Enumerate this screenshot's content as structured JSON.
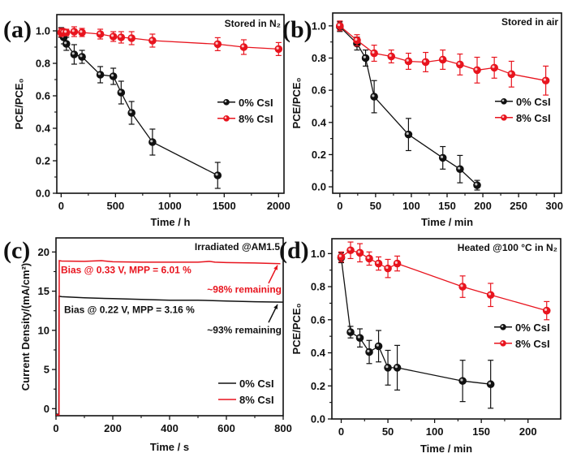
{
  "colors": {
    "series_0": "#111111",
    "series_8": "#e8141e",
    "axis": "#111111"
  },
  "chart_data": [
    {
      "id": "a",
      "panel_label": "(a)",
      "type": "line",
      "title": "Stored in N₂",
      "xlabel": "Time / h",
      "ylabel": "PCE/PCE₀",
      "xlim": [
        -40,
        2050
      ],
      "ylim": [
        0,
        1.1
      ],
      "xticks": [
        0,
        500,
        1000,
        1500,
        2000
      ],
      "yticks": [
        0.0,
        0.2,
        0.4,
        0.6,
        0.8,
        1.0
      ],
      "ytick_labels": [
        "0.0",
        "0.2",
        "0.4",
        "0.6",
        "0.8",
        "1.0"
      ],
      "legend": "center-right",
      "series": [
        {
          "name": "0% CsI",
          "color": "#111111",
          "x": [
            0,
            24,
            48,
            120,
            192,
            360,
            480,
            552,
            648,
            840,
            1440
          ],
          "y": [
            0.99,
            0.96,
            0.92,
            0.855,
            0.84,
            0.73,
            0.72,
            0.62,
            0.495,
            0.315,
            0.11
          ],
          "err": [
            0.03,
            0.04,
            0.04,
            0.06,
            0.04,
            0.05,
            0.05,
            0.07,
            0.07,
            0.08,
            0.08
          ]
        },
        {
          "name": "8% CsI",
          "color": "#e8141e",
          "x": [
            0,
            12,
            24,
            48,
            120,
            192,
            360,
            480,
            552,
            648,
            840,
            1440,
            1680,
            2000
          ],
          "y": [
            0.99,
            0.995,
            0.99,
            0.99,
            0.995,
            0.99,
            0.98,
            0.965,
            0.96,
            0.955,
            0.94,
            0.918,
            0.9,
            0.888
          ],
          "err": [
            0.025,
            0.02,
            0.02,
            0.02,
            0.03,
            0.025,
            0.03,
            0.03,
            0.035,
            0.04,
            0.04,
            0.04,
            0.045,
            0.04
          ]
        }
      ]
    },
    {
      "id": "b",
      "panel_label": "(b)",
      "type": "line",
      "title": "Stored in air",
      "xlabel": "Time / min",
      "ylabel": "PCE/PCE₀",
      "xlim": [
        -10,
        310
      ],
      "ylim": [
        -0.04,
        1.08
      ],
      "xticks": [
        0,
        50,
        100,
        150,
        200,
        250,
        300
      ],
      "yticks": [
        0.0,
        0.2,
        0.4,
        0.6,
        0.8,
        1.0
      ],
      "ytick_labels": [
        "0.0",
        "0.2",
        "0.4",
        "0.6",
        "0.8",
        "1.0"
      ],
      "legend": "center-right",
      "series": [
        {
          "name": "0% CsI",
          "color": "#111111",
          "x": [
            0,
            24,
            36,
            48,
            96,
            144,
            168,
            192
          ],
          "y": [
            0.995,
            0.89,
            0.8,
            0.56,
            0.325,
            0.18,
            0.11,
            0.01
          ],
          "err": [
            0.03,
            0.04,
            0.05,
            0.1,
            0.1,
            0.07,
            0.085,
            0.03
          ]
        },
        {
          "name": "8% CsI",
          "color": "#e8141e",
          "x": [
            0,
            24,
            48,
            72,
            96,
            120,
            144,
            168,
            192,
            216,
            240,
            288
          ],
          "y": [
            1.0,
            0.91,
            0.83,
            0.81,
            0.78,
            0.775,
            0.79,
            0.76,
            0.725,
            0.74,
            0.7,
            0.66
          ],
          "err": [
            0.03,
            0.035,
            0.05,
            0.04,
            0.05,
            0.06,
            0.06,
            0.065,
            0.08,
            0.065,
            0.08,
            0.09
          ]
        }
      ]
    },
    {
      "id": "c",
      "panel_label": "(c)",
      "type": "line",
      "title": "Irradiated @AM1.5",
      "xlabel": "Time / s",
      "ylabel": "Current Density/(mA/cm²)",
      "xlim": [
        0,
        800
      ],
      "ylim": [
        -0.9,
        21.8
      ],
      "xticks": [
        0,
        200,
        400,
        600,
        800
      ],
      "yticks": [
        0,
        5,
        10,
        15,
        20
      ],
      "ytick_labels": [
        "0",
        "5",
        "10",
        "15",
        "20"
      ],
      "legend": "bottom-right",
      "series": [
        {
          "name": "0% CsI",
          "color": "#111111",
          "x": [
            0,
            10,
            10.5,
            20,
            100,
            200,
            300,
            400,
            500,
            600,
            700,
            800
          ],
          "y": [
            -0.7,
            -0.7,
            14.35,
            14.3,
            14.15,
            14.05,
            13.95,
            13.85,
            13.85,
            13.75,
            13.65,
            13.6
          ]
        },
        {
          "name": "8% CsI",
          "color": "#e8141e",
          "x": [
            0,
            11,
            11.5,
            20,
            100,
            160,
            200,
            300,
            400,
            500,
            540,
            560,
            600,
            700,
            790
          ],
          "y": [
            -0.8,
            -0.8,
            18.9,
            18.85,
            18.8,
            18.9,
            18.75,
            18.7,
            18.7,
            18.7,
            18.8,
            18.7,
            18.65,
            18.6,
            18.5
          ]
        }
      ],
      "annotations": [
        {
          "text": "Bias @ 0.33 V, MPP = 6.01 %",
          "color": "#e8141e"
        },
        {
          "text": "~98% remaining",
          "color": "#e8141e"
        },
        {
          "text": "Bias @ 0.22 V, MPP = 3.16 %",
          "color": "#111111"
        },
        {
          "text": "~93% remaining",
          "color": "#111111"
        }
      ]
    },
    {
      "id": "d",
      "panel_label": "(d)",
      "type": "line",
      "title": "Heated @100 °C in N₂",
      "xlabel": "Time / min",
      "ylabel": "PCE/PCE₀",
      "xlim": [
        -10,
        235
      ],
      "ylim": [
        0,
        1.09
      ],
      "xticks": [
        0,
        50,
        100,
        150,
        200
      ],
      "yticks": [
        0.0,
        0.2,
        0.4,
        0.6,
        0.8,
        1.0
      ],
      "ytick_labels": [
        "0.0",
        "0.2",
        "0.4",
        "0.6",
        "0.8",
        "1.0"
      ],
      "legend": "center-right",
      "series": [
        {
          "name": "0% CsI",
          "color": "#111111",
          "x": [
            0,
            10,
            20,
            30,
            40,
            50,
            60,
            130,
            160
          ],
          "y": [
            0.975,
            0.525,
            0.49,
            0.405,
            0.44,
            0.31,
            0.31,
            0.23,
            0.21
          ],
          "err": [
            0.03,
            0.035,
            0.055,
            0.07,
            0.095,
            0.105,
            0.135,
            0.125,
            0.145
          ]
        },
        {
          "name": "8% CsI",
          "color": "#e8141e",
          "x": [
            0,
            10,
            20,
            30,
            40,
            50,
            60,
            130,
            160,
            220
          ],
          "y": [
            0.98,
            1.02,
            1.005,
            0.97,
            0.94,
            0.91,
            0.94,
            0.8,
            0.75,
            0.655
          ],
          "err": [
            0.03,
            0.05,
            0.055,
            0.04,
            0.04,
            0.055,
            0.045,
            0.065,
            0.07,
            0.055
          ]
        }
      ]
    }
  ]
}
